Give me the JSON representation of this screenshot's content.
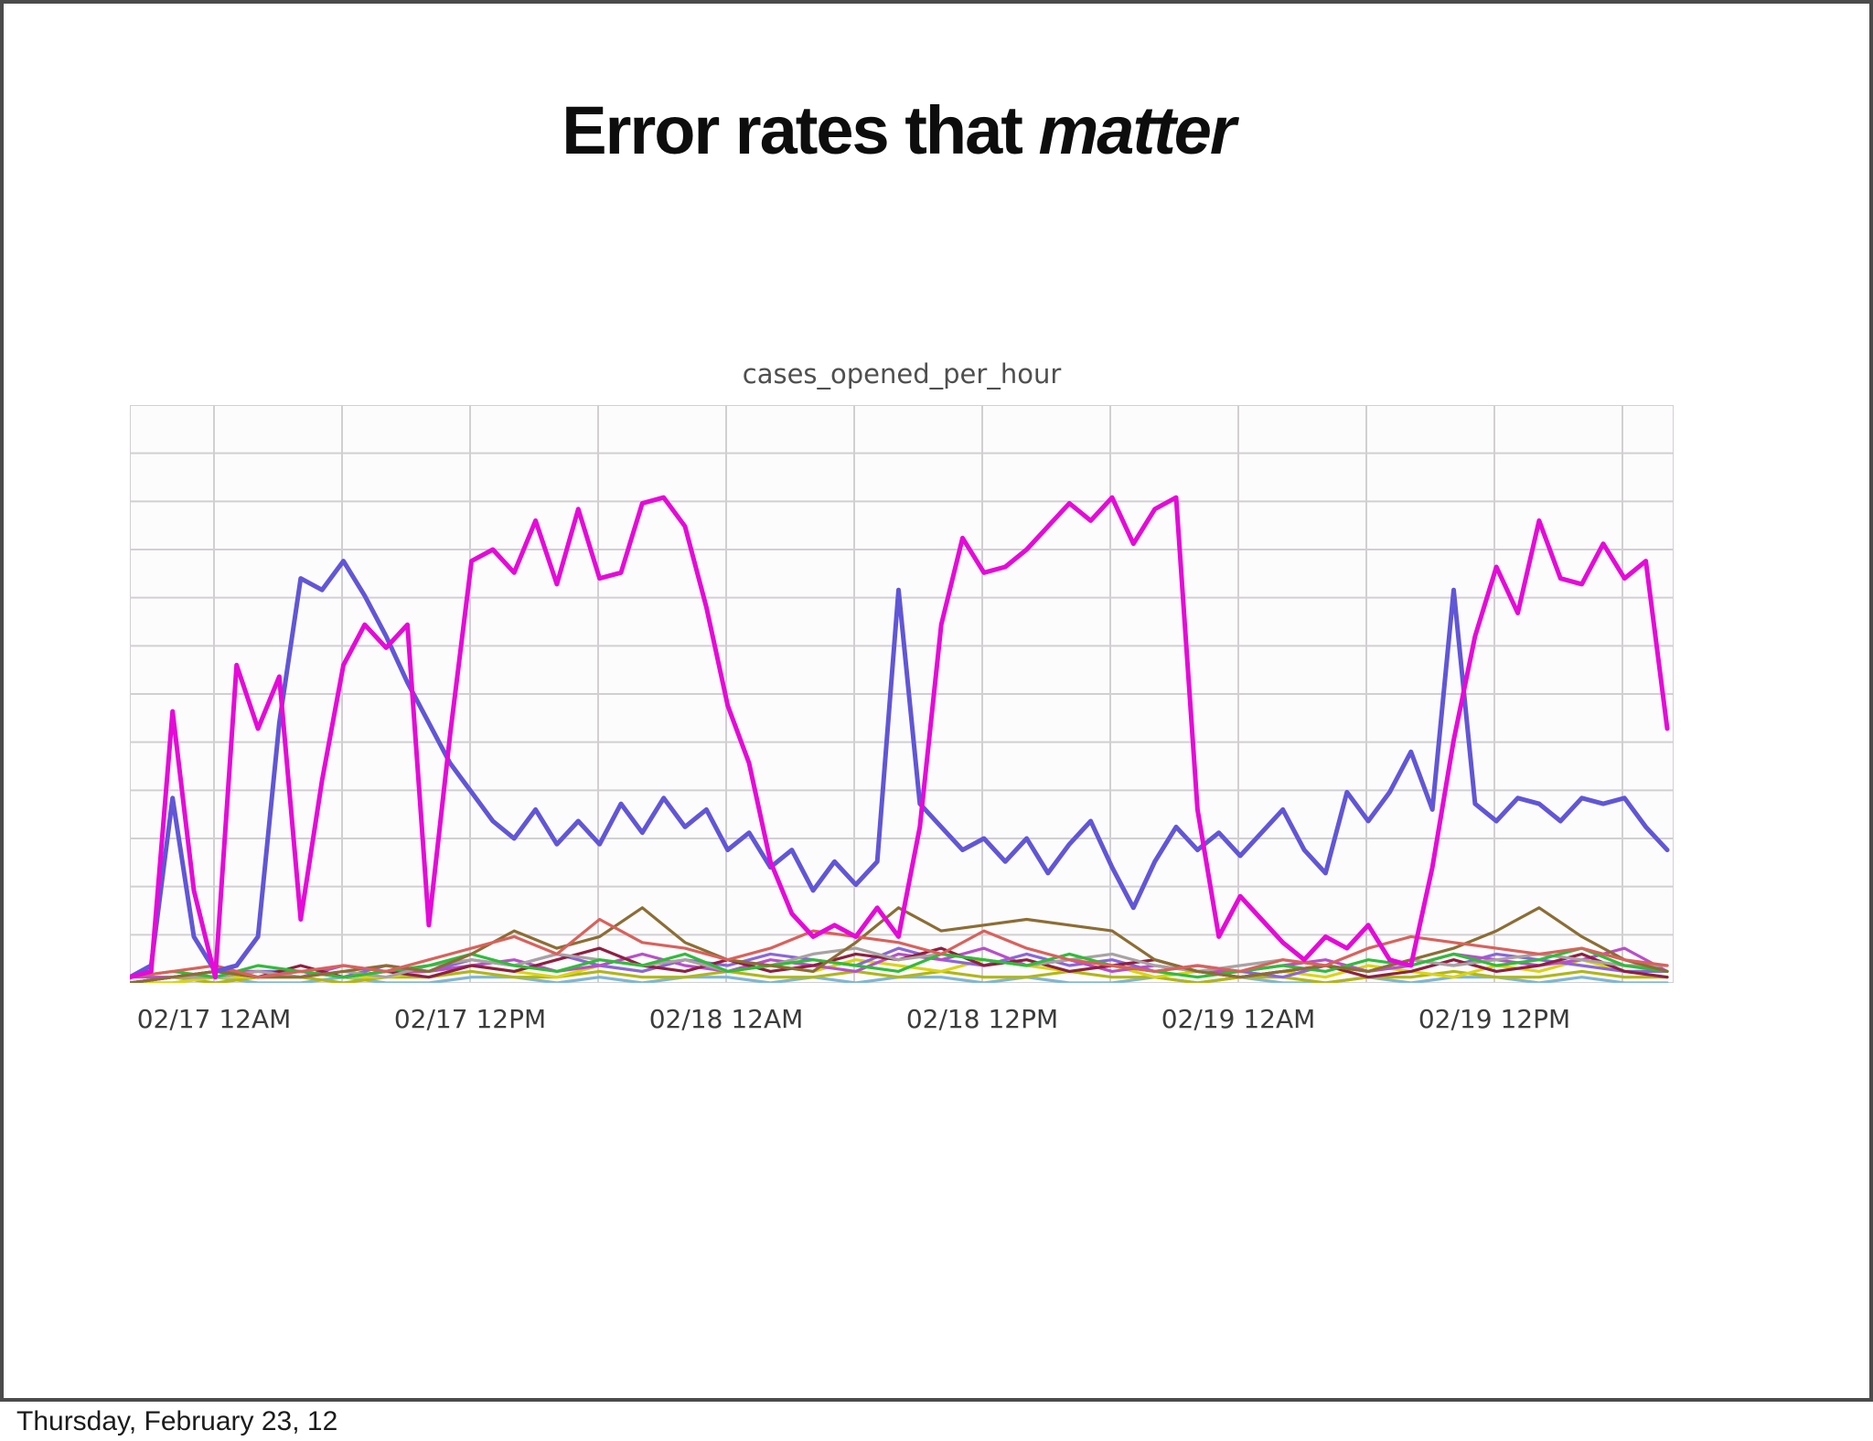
{
  "slide": {
    "title_regular": "Error rates that ",
    "title_italic": "matter",
    "footer": "Thursday, February 23, 12",
    "frame_color": "#4b4b4b",
    "background_color": "#ffffff"
  },
  "chart": {
    "title": "cases_opened_per_hour",
    "plot_background": "#fdfcfd",
    "gridline_color": "#d2cfd2"
  },
  "chart_data": {
    "type": "line",
    "title": "cases_opened_per_hour",
    "x_unit": "hours, hourly samples from ~02/16 8PM to ~02/19 9PM",
    "x_domain_hours": [
      0,
      72.3
    ],
    "x_tick_labels": [
      "02/17 12AM",
      "02/17 12PM",
      "02/18 12AM",
      "02/18 12PM",
      "02/19 12AM",
      "02/19 12PM"
    ],
    "x_tick_positions_hours": [
      4,
      16,
      28,
      40,
      52,
      64
    ],
    "ylabel": "",
    "y_note": "y-axis has no tick labels; values are percent of plot height (0-100)",
    "ylim": [
      0,
      100
    ],
    "grid": true,
    "legend": "none",
    "series": [
      {
        "name": "sky-blue-minor",
        "color": "#7fb6d4",
        "x_step_hours": 2,
        "values": [
          0,
          0,
          1,
          0,
          0,
          1,
          0,
          0,
          1,
          1,
          0,
          1,
          0,
          1,
          1,
          0,
          1,
          0,
          1,
          1,
          0,
          1,
          0,
          0,
          1,
          0,
          1,
          0,
          0,
          1,
          0,
          1,
          1,
          0,
          1,
          0,
          0
        ]
      },
      {
        "name": "olive-minor",
        "color": "#b0b618",
        "x_step_hours": 2,
        "values": [
          0,
          1,
          0,
          1,
          1,
          0,
          1,
          1,
          2,
          1,
          1,
          2,
          1,
          1,
          2,
          1,
          1,
          2,
          1,
          2,
          1,
          1,
          2,
          1,
          1,
          0,
          1,
          1,
          0,
          1,
          1,
          2,
          1,
          1,
          2,
          1,
          1
        ]
      },
      {
        "name": "yellow-minor",
        "color": "#d9d415",
        "x_step_hours": 2,
        "values": [
          0,
          0,
          1,
          1,
          2,
          1,
          1,
          2,
          3,
          2,
          1,
          3,
          2,
          4,
          2,
          3,
          2,
          4,
          3,
          2,
          4,
          3,
          2,
          3,
          1,
          2,
          1,
          2,
          1,
          3,
          2,
          1,
          3,
          2,
          4,
          2,
          1
        ]
      },
      {
        "name": "purple-minor",
        "color": "#8a66d9",
        "x_step_hours": 2,
        "values": [
          0,
          1,
          1,
          2,
          2,
          1,
          3,
          2,
          4,
          3,
          5,
          3,
          2,
          4,
          3,
          5,
          4,
          3,
          6,
          4,
          3,
          5,
          3,
          4,
          2,
          3,
          2,
          1,
          3,
          2,
          4,
          3,
          5,
          4,
          3,
          2,
          2
        ]
      },
      {
        "name": "orchid-minor",
        "color": "#b84fc9",
        "x_step_hours": 2,
        "values": [
          1,
          1,
          2,
          2,
          1,
          3,
          2,
          2,
          3,
          4,
          2,
          3,
          5,
          3,
          2,
          4,
          3,
          2,
          5,
          4,
          6,
          3,
          4,
          2,
          3,
          2,
          2,
          3,
          4,
          2,
          3,
          5,
          4,
          3,
          4,
          6,
          2
        ]
      },
      {
        "name": "maroon-minor",
        "color": "#8e2040",
        "x_step_hours": 2,
        "values": [
          0,
          1,
          2,
          1,
          3,
          1,
          2,
          1,
          3,
          2,
          4,
          6,
          3,
          2,
          4,
          2,
          3,
          5,
          4,
          6,
          3,
          4,
          2,
          3,
          4,
          2,
          1,
          2,
          3,
          1,
          2,
          4,
          2,
          3,
          5,
          2,
          1
        ]
      },
      {
        "name": "gray-minor",
        "color": "#a8a2a2",
        "x_step_hours": 2,
        "values": [
          0,
          1,
          1,
          2,
          1,
          2,
          1,
          3,
          4,
          3,
          5,
          4,
          3,
          4,
          2,
          3,
          5,
          6,
          4,
          5,
          4,
          3,
          4,
          5,
          3,
          2,
          3,
          4,
          3,
          2,
          4,
          3,
          4,
          5,
          4,
          3,
          3
        ]
      },
      {
        "name": "green-minor",
        "color": "#2fbc3a",
        "x_step_hours": 2,
        "values": [
          1,
          2,
          1,
          3,
          2,
          1,
          2,
          3,
          5,
          3,
          2,
          4,
          3,
          5,
          2,
          3,
          4,
          3,
          2,
          5,
          4,
          3,
          5,
          3,
          2,
          1,
          2,
          3,
          2,
          4,
          3,
          5,
          3,
          4,
          6,
          3,
          2
        ]
      },
      {
        "name": "brown-minor",
        "color": "#8c6d34",
        "x_step_hours": 2,
        "values": [
          0,
          1,
          2,
          1,
          1,
          2,
          3,
          2,
          5,
          9,
          6,
          8,
          13,
          7,
          4,
          3,
          2,
          7,
          13,
          9,
          10,
          11,
          10,
          9,
          4,
          2,
          1,
          2,
          3,
          2,
          4,
          6,
          9,
          13,
          8,
          4,
          2
        ]
      },
      {
        "name": "salmon-minor",
        "color": "#d9615c",
        "x_step_hours": 2,
        "values": [
          1,
          2,
          3,
          1,
          2,
          3,
          2,
          4,
          6,
          8,
          5,
          11,
          7,
          6,
          4,
          6,
          9,
          8,
          7,
          5,
          9,
          6,
          4,
          3,
          2,
          3,
          2,
          4,
          3,
          6,
          8,
          7,
          6,
          5,
          6,
          4,
          3
        ]
      },
      {
        "name": "blue-main",
        "color": "#6156d6",
        "x_step_hours": 1,
        "values": [
          1,
          3,
          32,
          8,
          2,
          3,
          8,
          45,
          70,
          68,
          73,
          67,
          60,
          52,
          45,
          38,
          33,
          28,
          25,
          30,
          24,
          28,
          24,
          31,
          26,
          32,
          27,
          30,
          23,
          26,
          20,
          23,
          16,
          21,
          17,
          21,
          68,
          31,
          27,
          23,
          25,
          21,
          25,
          19,
          24,
          28,
          20,
          13,
          21,
          27,
          23,
          26,
          22,
          26,
          30,
          23,
          19,
          33,
          28,
          33,
          40,
          30,
          68,
          31,
          28,
          32,
          31,
          28,
          32,
          31,
          32,
          27,
          23
        ]
      },
      {
        "name": "magenta-main",
        "color": "#e50ad8",
        "x_step_hours": 1,
        "values": [
          1,
          2,
          47,
          16,
          1,
          55,
          44,
          53,
          11,
          35,
          55,
          62,
          58,
          62,
          10,
          43,
          73,
          75,
          71,
          80,
          69,
          82,
          70,
          71,
          83,
          84,
          79,
          65,
          48,
          38,
          21,
          12,
          8,
          10,
          8,
          13,
          8,
          27,
          62,
          77,
          71,
          72,
          75,
          79,
          83,
          80,
          84,
          76,
          82,
          84,
          30,
          8,
          15,
          11,
          7,
          4,
          8,
          6,
          10,
          4,
          3,
          20,
          42,
          60,
          72,
          64,
          80,
          70,
          69,
          76,
          70,
          73,
          44
        ]
      }
    ]
  }
}
